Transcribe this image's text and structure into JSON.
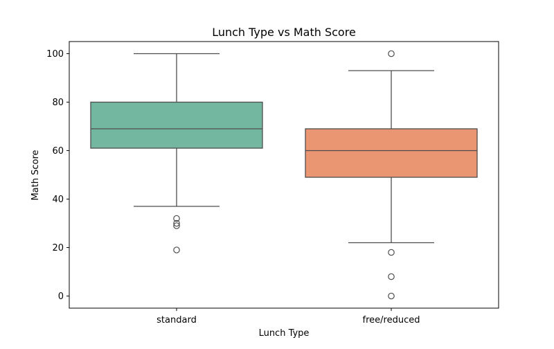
{
  "chart_data": {
    "type": "box",
    "title": "Lunch Type vs Math Score",
    "xlabel": "Lunch Type",
    "ylabel": "Math Score",
    "categories": [
      "standard",
      "free/reduced"
    ],
    "ylim": [
      -5,
      105
    ],
    "yticks": [
      0,
      20,
      40,
      60,
      80,
      100
    ],
    "grid": false,
    "boxes": [
      {
        "category": "standard",
        "whisker_low": 37,
        "q1": 61,
        "median": 69,
        "q3": 80,
        "whisker_high": 100,
        "outliers": [
          32,
          30,
          29,
          19
        ],
        "color": "#74b7a1"
      },
      {
        "category": "free/reduced",
        "whisker_low": 22,
        "q1": 49,
        "median": 60,
        "q3": 69,
        "whisker_high": 93,
        "outliers": [
          100,
          18,
          8,
          0
        ],
        "color": "#eb9673"
      }
    ]
  }
}
